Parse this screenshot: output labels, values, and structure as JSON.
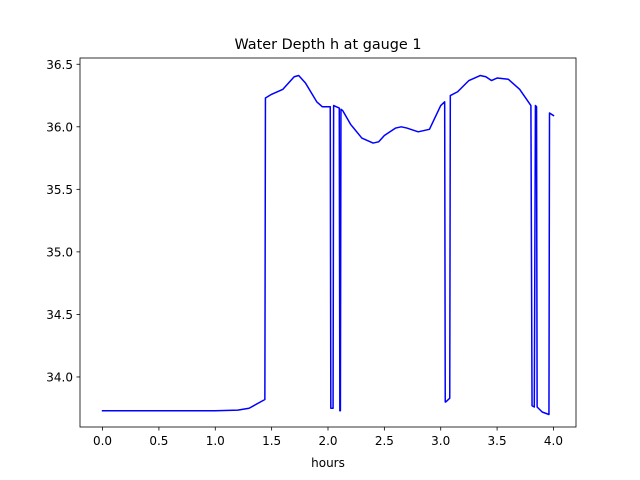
{
  "chart_data": {
    "type": "line",
    "title": "Water Depth h at gauge 1",
    "xlabel": "hours",
    "ylabel": "",
    "xlim": [
      -0.2,
      4.2
    ],
    "ylim": [
      33.6,
      36.55
    ],
    "xticks": [
      0.0,
      0.5,
      1.0,
      1.5,
      2.0,
      2.5,
      3.0,
      3.5,
      4.0
    ],
    "xtick_labels": [
      "0.0",
      "0.5",
      "1.0",
      "1.5",
      "2.0",
      "2.5",
      "3.0",
      "3.5",
      "4.0"
    ],
    "yticks": [
      34.0,
      34.5,
      35.0,
      35.5,
      36.0,
      36.5
    ],
    "ytick_labels": [
      "34.0",
      "34.5",
      "35.0",
      "35.5",
      "36.0",
      "36.5"
    ],
    "grid": false,
    "legend": "none",
    "series": [
      {
        "color": "#0000ff",
        "x": [
          0.0,
          0.5,
          1.0,
          1.2,
          1.3,
          1.4,
          1.44,
          1.445,
          1.5,
          1.6,
          1.7,
          1.74,
          1.8,
          1.9,
          1.95,
          2.02,
          2.025,
          2.045,
          2.05,
          2.1,
          2.105,
          2.11,
          2.115,
          2.13,
          2.2,
          2.3,
          2.4,
          2.45,
          2.5,
          2.6,
          2.65,
          2.7,
          2.8,
          2.9,
          3.0,
          3.035,
          3.04,
          3.045,
          3.08,
          3.085,
          3.15,
          3.25,
          3.35,
          3.4,
          3.45,
          3.5,
          3.6,
          3.7,
          3.8,
          3.81,
          3.83,
          3.84,
          3.85,
          3.855,
          3.9,
          3.96,
          3.965,
          4.0
        ],
        "values": [
          33.73,
          33.73,
          33.73,
          33.735,
          33.75,
          33.8,
          33.82,
          36.23,
          36.26,
          36.3,
          36.4,
          36.41,
          36.35,
          36.2,
          36.16,
          36.16,
          33.75,
          33.75,
          36.17,
          36.15,
          33.73,
          33.73,
          36.14,
          36.13,
          36.02,
          35.91,
          35.87,
          35.88,
          35.93,
          35.99,
          36.0,
          35.99,
          35.96,
          35.98,
          36.17,
          36.2,
          33.8,
          33.8,
          33.83,
          36.25,
          36.28,
          36.37,
          36.41,
          36.4,
          36.37,
          36.39,
          36.38,
          36.3,
          36.17,
          33.77,
          33.76,
          36.17,
          36.16,
          33.76,
          33.72,
          33.7,
          36.11,
          36.09
        ]
      }
    ]
  }
}
